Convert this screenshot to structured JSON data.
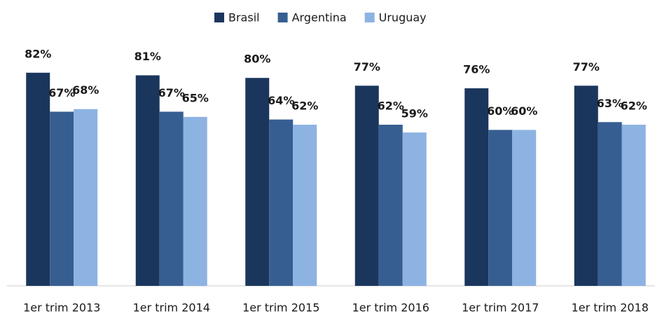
{
  "chart_data": {
    "type": "bar",
    "categories": [
      "1er trim 2013",
      "1er trim 2014",
      "1er trim 2015",
      "1er trim 2016",
      "1er trim 2017",
      "1er trim 2018"
    ],
    "series": [
      {
        "name": "Brasil",
        "color": "#1b365d",
        "values": [
          82,
          81,
          80,
          77,
          76,
          77
        ],
        "value_labels": [
          "82%",
          "81%",
          "80%",
          "77%",
          "76%",
          "77%"
        ]
      },
      {
        "name": "Argentina",
        "color": "#375e91",
        "values": [
          67,
          67,
          64,
          62,
          60,
          63
        ],
        "value_labels": [
          "67%",
          "67%",
          "64%",
          "62%",
          "60%",
          "63%"
        ]
      },
      {
        "name": "Uruguay",
        "color": "#8db3e2",
        "values": [
          68,
          65,
          62,
          59,
          60,
          62
        ],
        "value_labels": [
          "68%",
          "65%",
          "62%",
          "59%",
          "60%",
          "62%"
        ]
      }
    ],
    "ylim": [
      0,
      100
    ]
  }
}
